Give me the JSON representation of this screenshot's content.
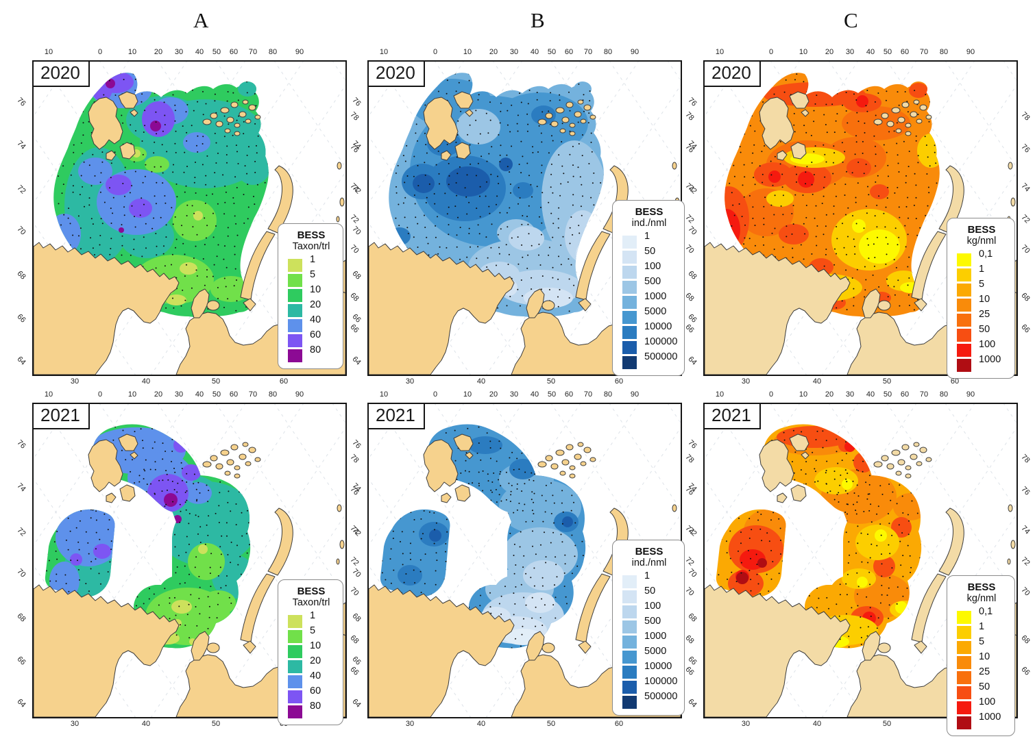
{
  "figure": {
    "column_headers": [
      "A",
      "B",
      "C"
    ]
  },
  "axis_ticks": {
    "top": [
      "10",
      "0",
      "10",
      "20",
      "30",
      "40",
      "50",
      "60",
      "70",
      "80",
      "90"
    ],
    "bottom": [
      "30",
      "40",
      "50",
      "60"
    ],
    "left": [
      "76",
      "74",
      "72",
      "70",
      "68",
      "66",
      "64"
    ],
    "right": [
      "78",
      "76",
      "74",
      "72",
      "70",
      "68",
      "66"
    ]
  },
  "panels": [
    {
      "id": "a-2020",
      "year": "2020",
      "column": "A",
      "legend": "taxon"
    },
    {
      "id": "b-2020",
      "year": "2020",
      "column": "B",
      "legend": "abundance"
    },
    {
      "id": "c-2020",
      "year": "2020",
      "column": "C",
      "legend": "biomass"
    },
    {
      "id": "a-2021",
      "year": "2021",
      "column": "A",
      "legend": "taxon"
    },
    {
      "id": "b-2021",
      "year": "2021",
      "column": "B",
      "legend": "abundance"
    },
    {
      "id": "c-2021",
      "year": "2021",
      "column": "C",
      "legend": "biomass"
    }
  ],
  "legends": {
    "taxon": {
      "title": "BESS",
      "unit": "Taxon/trl",
      "entries": [
        {
          "label": "1",
          "color": "#cde15c"
        },
        {
          "label": "5",
          "color": "#71e04a"
        },
        {
          "label": "10",
          "color": "#2fcb5f"
        },
        {
          "label": "20",
          "color": "#2db9a3"
        },
        {
          "label": "40",
          "color": "#5e91eb"
        },
        {
          "label": "60",
          "color": "#7d55f3"
        },
        {
          "label": "80",
          "color": "#8c0a94"
        }
      ]
    },
    "abundance": {
      "title": "BESS",
      "unit": "ind./nml",
      "entries": [
        {
          "label": "1",
          "color": "#e2eef8"
        },
        {
          "label": "50",
          "color": "#d4e4f4"
        },
        {
          "label": "100",
          "color": "#bdd7ee"
        },
        {
          "label": "500",
          "color": "#9cc6e5"
        },
        {
          "label": "1000",
          "color": "#74b2dd"
        },
        {
          "label": "5000",
          "color": "#4697d0"
        },
        {
          "label": "10000",
          "color": "#2b7cc0"
        },
        {
          "label": "100000",
          "color": "#1b5dab"
        },
        {
          "label": "500000",
          "color": "#123a72"
        }
      ]
    },
    "biomass": {
      "title": "BESS",
      "unit": "kg/nml",
      "entries": [
        {
          "label": "0,1",
          "color": "#fdf900"
        },
        {
          "label": "1",
          "color": "#fcce00"
        },
        {
          "label": "5",
          "color": "#fba903"
        },
        {
          "label": "10",
          "color": "#f98b0a"
        },
        {
          "label": "25",
          "color": "#f8700d"
        },
        {
          "label": "50",
          "color": "#f74e12"
        },
        {
          "label": "100",
          "color": "#f51a0f"
        },
        {
          "label": "1000",
          "color": "#b00d13"
        }
      ]
    }
  },
  "map_colors": {
    "sea": "#ffffff",
    "land": "#f6d28d",
    "land_biomass": "#f3dba6",
    "coastline": "#3c3c3c",
    "graticule": "#d5dce3",
    "frame": "#151515",
    "station_dot": "#111111"
  }
}
